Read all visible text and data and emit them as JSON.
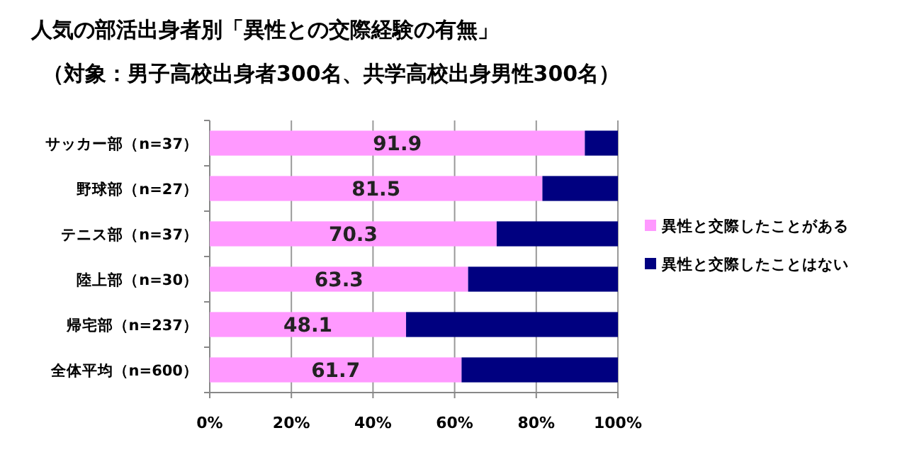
{
  "chart_data": {
    "type": "bar",
    "orientation": "horizontal",
    "stacked": true,
    "title": "人気の部活出身者別「異性との交際経験の有無」",
    "subtitle": "（対象：男子高校出身者300名、共学高校出身男性300名）",
    "categories": [
      "サッカー部（n=37）",
      "野球部（n=27）",
      "テニス部（n=37）",
      "陸上部（n=30）",
      "帰宅部（n=237）",
      "全体平均（n=600）"
    ],
    "series": [
      {
        "name": "異性と交際したことがある",
        "color": "#ff99ff",
        "values": [
          91.9,
          81.5,
          70.3,
          63.3,
          48.1,
          61.7
        ],
        "value_labels": [
          "91.9",
          "81.5",
          "70.3",
          "63.3",
          "48.1",
          "61.7"
        ]
      },
      {
        "name": "異性と交際したことはない",
        "color": "#000080",
        "values": [
          8.1,
          18.5,
          29.7,
          36.7,
          51.9,
          38.3
        ]
      }
    ],
    "xlim": [
      0,
      100
    ],
    "xticks": [
      {
        "value": 0,
        "label": "0%"
      },
      {
        "value": 20,
        "label": "20%"
      },
      {
        "value": 40,
        "label": "40%"
      },
      {
        "value": 60,
        "label": "60%"
      },
      {
        "value": 80,
        "label": "80%"
      },
      {
        "value": 100,
        "label": "100%"
      }
    ],
    "grid": "x",
    "legend": "right"
  }
}
